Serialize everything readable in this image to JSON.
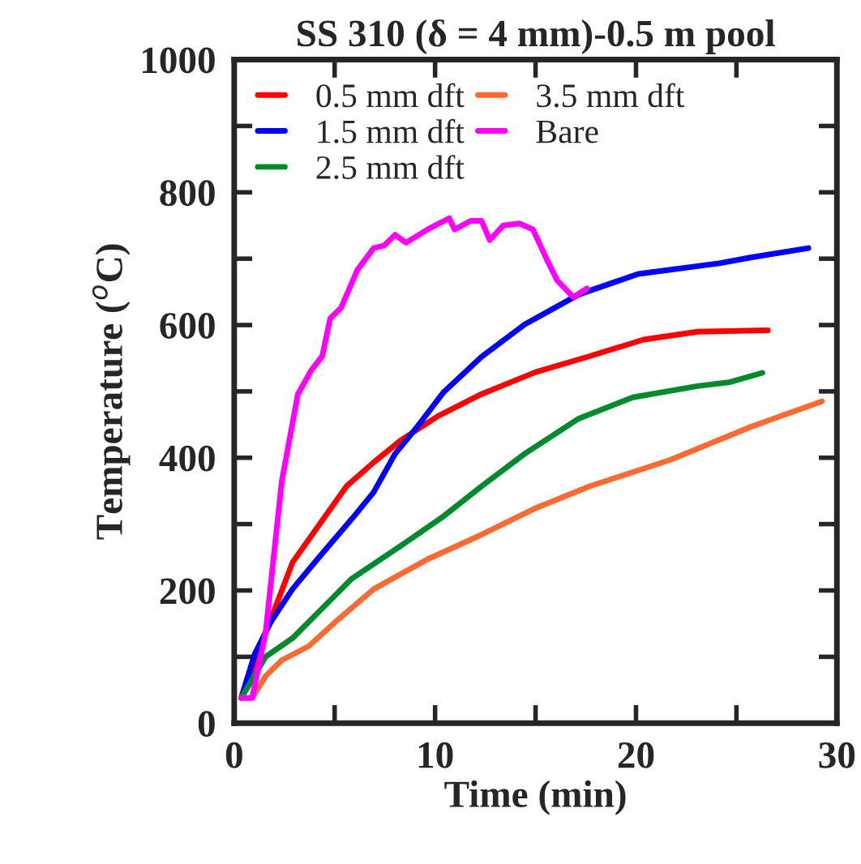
{
  "chart_data": {
    "type": "line",
    "title": "SS 310 (δ = 4 mm)-0.5 m pool",
    "xlabel": "Time (min)",
    "ylabel": "Temperature ($^{o}$C)",
    "xlim": [
      0,
      30
    ],
    "ylim": [
      0,
      1000
    ],
    "xticks": [
      0,
      {
        "value": 5,
        "label": null
      },
      10,
      {
        "value": 15,
        "label": null
      },
      20,
      {
        "value": 25,
        "label": null
      },
      30
    ],
    "yticks": [
      0,
      {
        "value": 100,
        "label": null
      },
      200,
      {
        "value": 300,
        "label": null
      },
      400,
      {
        "value": 500,
        "label": null
      },
      600,
      {
        "value": 700,
        "label": null
      },
      800,
      {
        "value": 900,
        "label": null
      },
      1000
    ],
    "grid": false,
    "legend": "top left",
    "marker": "none",
    "line_style": "solid",
    "series": [
      {
        "name": "0.5 mm dft",
        "color": "#ff0000",
        "x": [
          0.35,
          1.56,
          2.9,
          4.25,
          5.59,
          6.94,
          8.28,
          10.16,
          12.31,
          15,
          17.69,
          20.38,
          23.06,
          26.56
        ],
        "values": [
          38,
          136,
          242,
          300,
          357,
          393,
          426,
          463,
          496,
          529,
          553,
          578,
          590,
          592
        ]
      },
      {
        "name": "1.5 mm dft",
        "color": "#0000ff",
        "x": [
          0.35,
          1.02,
          1.83,
          2.9,
          4.25,
          5.86,
          6.94,
          8.01,
          9.09,
          10.43,
          12.31,
          14.46,
          17.15,
          20.11,
          24.14,
          25.75,
          28.58
        ],
        "values": [
          38,
          104,
          153,
          202,
          251,
          308,
          348,
          406,
          446,
          499,
          552,
          601,
          646,
          677,
          693,
          702,
          716
        ]
      },
      {
        "name": "2.5 mm dft",
        "color": "#008a2e",
        "x": [
          0.35,
          1.56,
          2.9,
          4.25,
          5.86,
          8.28,
          10.43,
          12.31,
          14.46,
          17.15,
          19.84,
          23.06,
          24.68,
          26.29
        ],
        "values": [
          38,
          100,
          128,
          169,
          218,
          267,
          312,
          357,
          406,
          459,
          491,
          508,
          514,
          528
        ]
      },
      {
        "name": "3.5 mm dft",
        "color": "#ff6a33",
        "x": [
          0.35,
          0.89,
          1.56,
          2.37,
          3.71,
          5.05,
          6.94,
          9.62,
          12.31,
          15,
          17.69,
          21.72,
          25.75,
          29.25
        ],
        "values": [
          38,
          38,
          71,
          95,
          116,
          153,
          202,
          247,
          284,
          324,
          357,
          397,
          447,
          485
        ]
      },
      {
        "name": "Bare",
        "color": "#ff00ff",
        "x": [
          0.35,
          0.89,
          1.56,
          2.37,
          3.17,
          3.84,
          4.38,
          4.78,
          5.32,
          6.13,
          6.94,
          7.47,
          8.01,
          8.55,
          9.62,
          10.7,
          10.97,
          11.77,
          12.31,
          12.72,
          13.39,
          14.19,
          14.87,
          15.54,
          16.08,
          16.88,
          17.55
        ],
        "values": [
          38,
          38,
          136,
          365,
          496,
          532,
          553,
          610,
          626,
          683,
          716,
          720,
          736,
          724,
          744,
          761,
          744,
          757,
          757,
          728,
          750,
          753,
          744,
          700,
          667,
          642,
          655
        ]
      }
    ]
  }
}
